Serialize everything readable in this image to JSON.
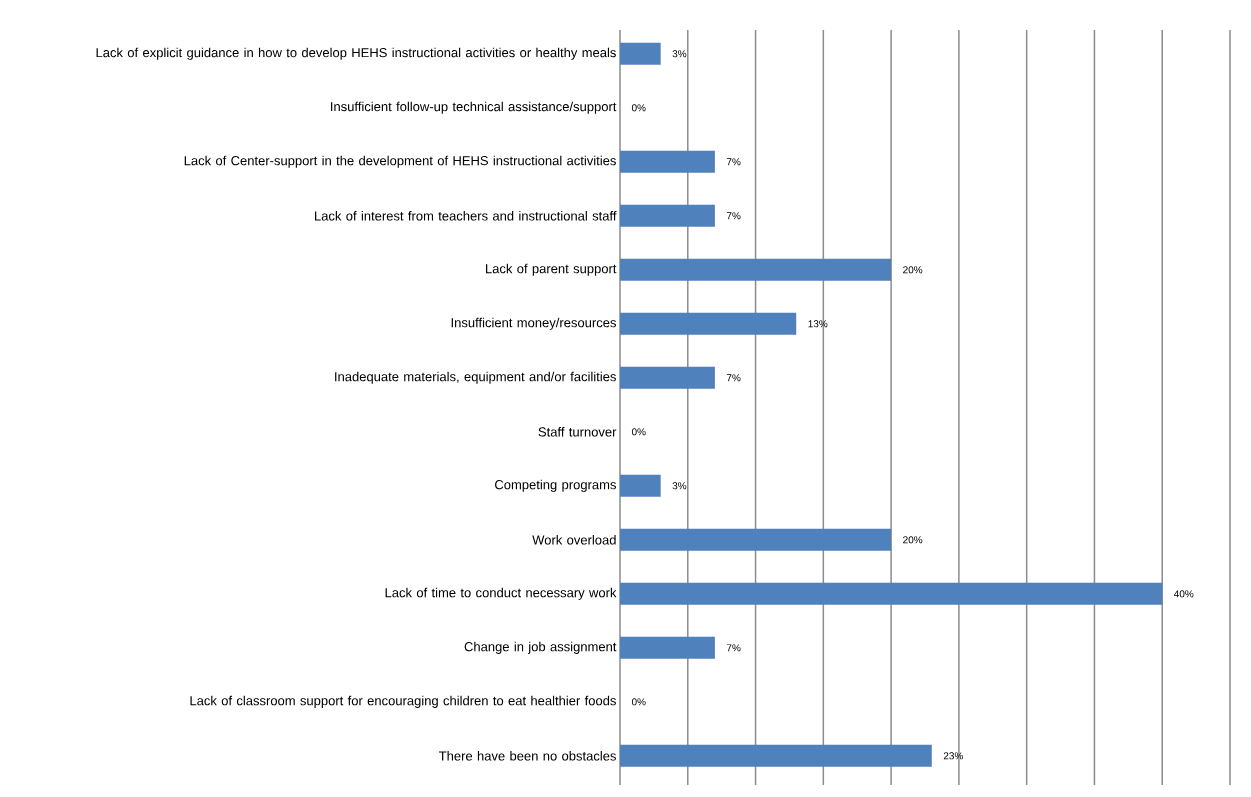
{
  "chart_data": {
    "type": "bar",
    "orientation": "horizontal",
    "categories": [
      "Lack of explicit guidance in how to develop HEHS instructional activities or healthy meals",
      "Insufficient follow-up technical assistance/support",
      "Lack of Center-support in the development of HEHS instructional activities",
      "Lack of interest from teachers and instructional staff",
      "Lack of parent support",
      "Insufficient money/resources",
      "Inadequate materials, equipment and/or facilities",
      "Staff turnover",
      "Competing programs",
      "Work overload",
      "Lack of time to conduct necessary work",
      "Change in job assignment",
      "Lack of classroom support for encouraging children to eat healthier foods",
      "There have been no obstacles"
    ],
    "values": [
      3,
      0,
      7,
      7,
      20,
      13,
      7,
      0,
      3,
      20,
      40,
      7,
      0,
      23
    ],
    "value_labels": [
      "3%",
      "0%",
      "7%",
      "7%",
      "20%",
      "13%",
      "7%",
      "0%",
      "3%",
      "20%",
      "40%",
      "7%",
      "0%",
      "23%"
    ],
    "color": "#4f81bd",
    "xlim": [
      0,
      45
    ],
    "xticks": [
      {
        "value": 0,
        "label": null
      },
      {
        "value": 5,
        "label": null
      },
      {
        "value": 10,
        "label": null
      },
      {
        "value": 15,
        "label": null
      },
      {
        "value": 20,
        "label": null
      },
      {
        "value": 25,
        "label": null
      },
      {
        "value": 30,
        "label": null
      },
      {
        "value": 35,
        "label": null
      },
      {
        "value": 40,
        "label": null
      },
      {
        "value": 45,
        "label": null
      }
    ],
    "grid": "x",
    "tick_labels": "y"
  }
}
